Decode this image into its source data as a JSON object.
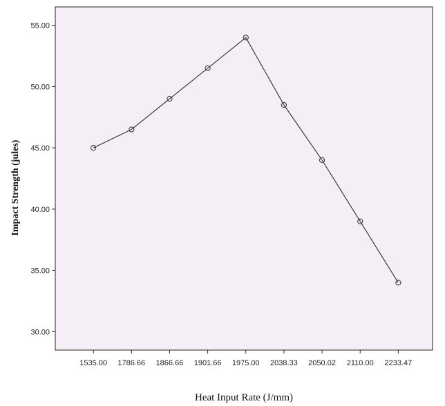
{
  "chart_data": {
    "type": "line",
    "title": "",
    "xlabel": "Heat Input Rate (J/mm)",
    "ylabel": "Impact Strength (jules)",
    "categories": [
      "1535.00",
      "1786.66",
      "1866.66",
      "1901.66",
      "1975.00",
      "2038.33",
      "2050.02",
      "2110.00",
      "2233.47"
    ],
    "series": [
      {
        "values": [
          45.0,
          46.5,
          49.0,
          51.5,
          54.0,
          48.5,
          44.0,
          39.0,
          34.0
        ]
      }
    ],
    "yticks": [
      "30.00",
      "35.00",
      "40.00",
      "45.00",
      "50.00",
      "55.00"
    ],
    "ylim": [
      28.5,
      56.5
    ],
    "grid": false,
    "colors": {
      "background": "#f6eef6",
      "line": "#3a3a3a",
      "marker": "#3a3a3a"
    }
  }
}
